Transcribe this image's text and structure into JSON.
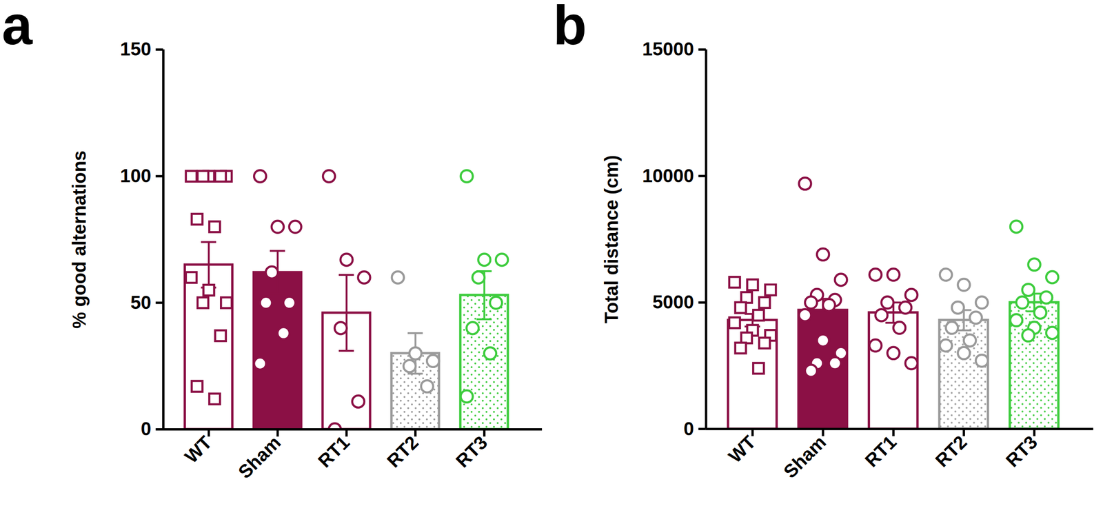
{
  "chart_data": [
    {
      "type": "bar",
      "title": "a",
      "categories": [
        "WT",
        "Sham",
        "RT1",
        "RT2",
        "RT3"
      ],
      "values": [
        65,
        62,
        46,
        30,
        53
      ],
      "errors": [
        9,
        8.5,
        15,
        8,
        9.5
      ],
      "points": [
        [
          100,
          100,
          100,
          100,
          100,
          83,
          80,
          60,
          55,
          50,
          50,
          37,
          17,
          12
        ],
        [
          100,
          80,
          80,
          62,
          50,
          50,
          38,
          26
        ],
        [
          100,
          67,
          60,
          40,
          11,
          0
        ],
        [
          60,
          30,
          27,
          25,
          17
        ],
        [
          100,
          67,
          67,
          60,
          50,
          40,
          30,
          13
        ]
      ],
      "colors": [
        "#8b1045",
        "#8b1045",
        "#8b1045",
        "#9a9a9a",
        "#3dcc3d"
      ],
      "y_label": "% good alternations",
      "ylim": [
        0,
        150
      ],
      "yticks": [
        0,
        50,
        100,
        150
      ]
    },
    {
      "type": "bar",
      "title": "b",
      "categories": [
        "WT",
        "Sham",
        "RT1",
        "RT2",
        "RT3"
      ],
      "values": [
        4300,
        4700,
        4600,
        4300,
        5000
      ],
      "errors": [
        250,
        450,
        400,
        400,
        350
      ],
      "points": [
        [
          5800,
          5700,
          5500,
          5200,
          5000,
          4800,
          4500,
          4200,
          3900,
          3700,
          3600,
          3400,
          3200,
          2400
        ],
        [
          9700,
          6900,
          5900,
          5300,
          5100,
          5000,
          4900,
          4500,
          3500,
          3000,
          2600,
          2600,
          2300
        ],
        [
          6100,
          6100,
          5300,
          5000,
          4800,
          4500,
          4000,
          3300,
          3000,
          2600
        ],
        [
          6100,
          5700,
          5000,
          4800,
          4400,
          4000,
          3500,
          3300,
          3000,
          2700
        ],
        [
          8000,
          6500,
          6000,
          5500,
          5200,
          5000,
          4600,
          4300,
          4000,
          3800,
          3700
        ]
      ],
      "colors": [
        "#8b1045",
        "#8b1045",
        "#8b1045",
        "#9a9a9a",
        "#3dcc3d"
      ],
      "y_label": "Total distance (cm)",
      "ylim": [
        0,
        15000
      ],
      "yticks": [
        0,
        5000,
        10000,
        15000
      ]
    }
  ]
}
